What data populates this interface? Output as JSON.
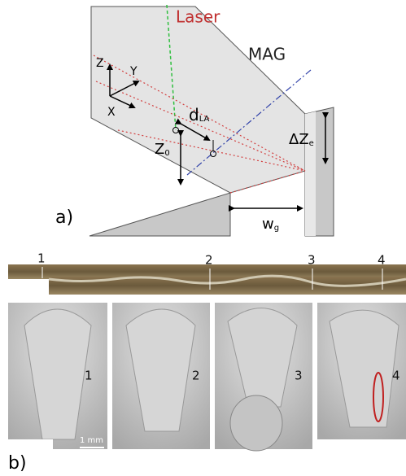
{
  "panel_a": {
    "label": "a)",
    "laser": "Laser",
    "mag": "MAG",
    "axes": {
      "z": "Z",
      "y": "Y",
      "x": "X"
    },
    "d_la": {
      "base": "d",
      "sub": "LA"
    },
    "z0": {
      "base": "Z",
      "sub": "0"
    },
    "delta_ze": {
      "base": "ΔZ",
      "sub": "e"
    },
    "wg": {
      "base": "w",
      "sub": "g"
    }
  },
  "panel_b": {
    "label": "b)",
    "positions": [
      "1",
      "2",
      "3",
      "4"
    ],
    "sections": [
      "1",
      "2",
      "3",
      "4"
    ],
    "scale": "1 mm"
  }
}
